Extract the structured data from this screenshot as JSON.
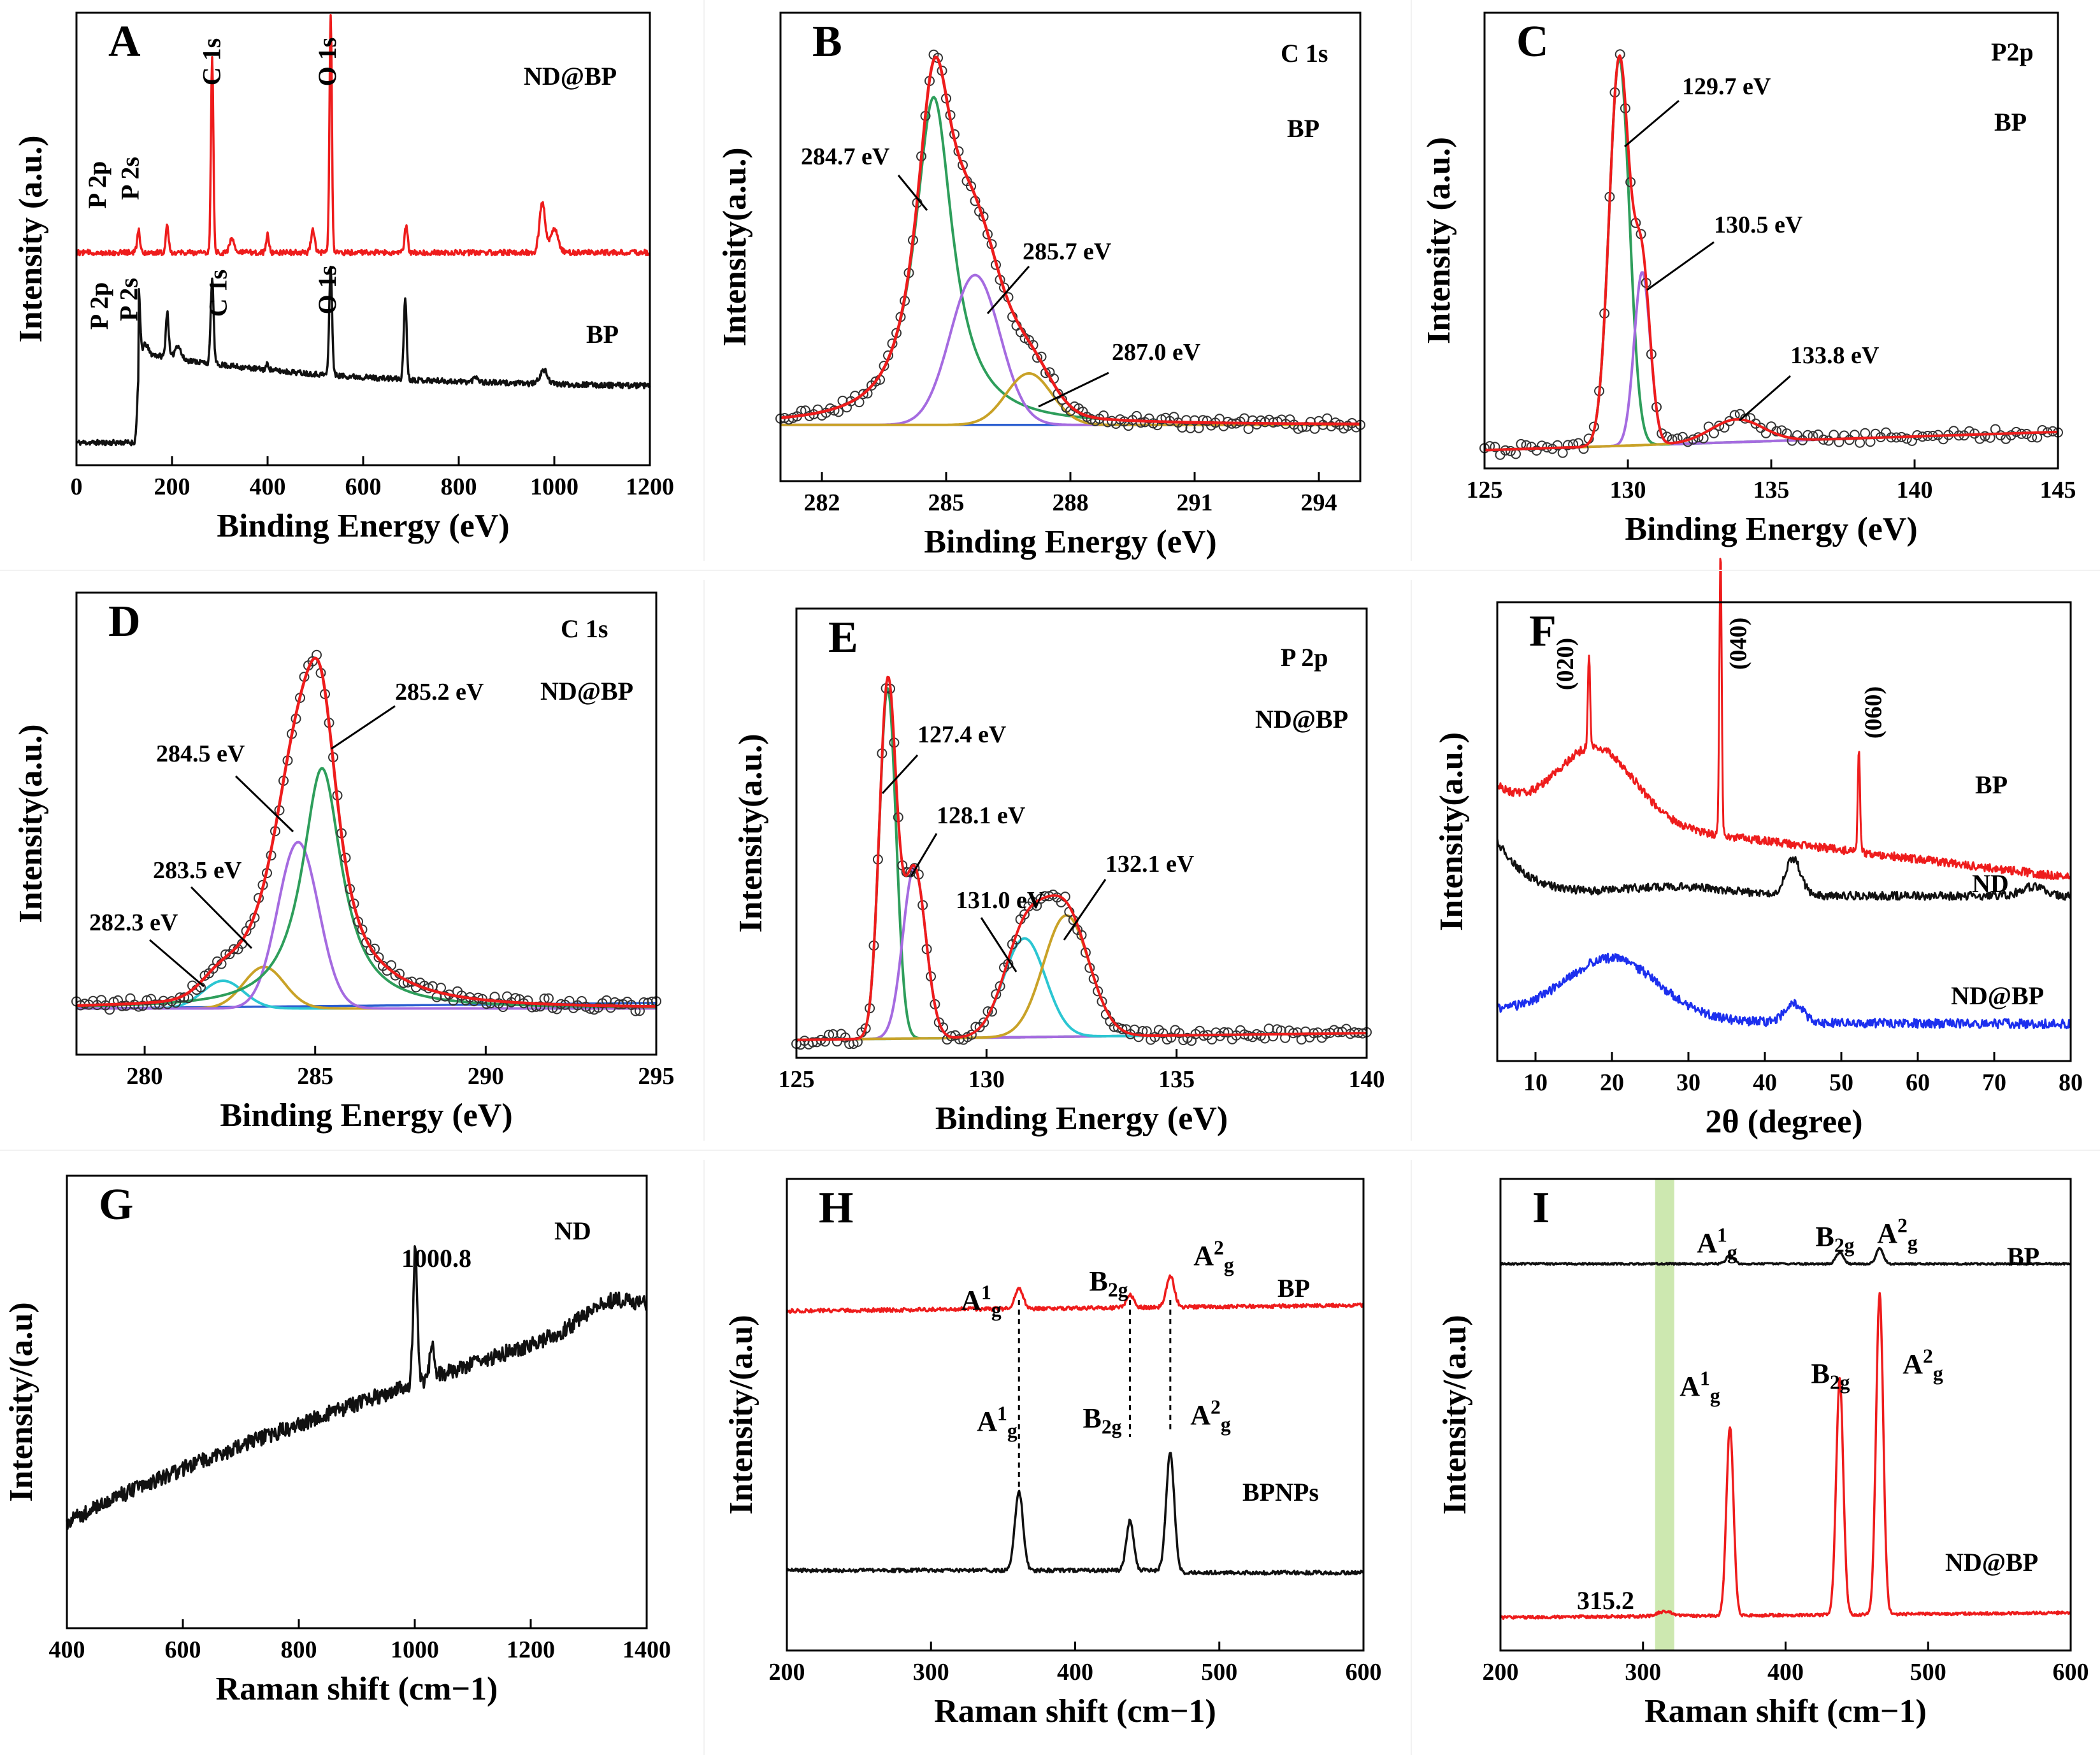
{
  "colors": {
    "red": "#ee1c1c",
    "black": "#111111",
    "blue": "#1c2fee",
    "green": "#2e9e5b",
    "purple": "#a56be0",
    "gold": "#c9a227",
    "cyan": "#2bc6d2",
    "baseline": "#2c5fd0",
    "highlight": "#cde8b0"
  },
  "chart_data": [
    {
      "id": "A",
      "type": "line",
      "letter": "A",
      "xlabel": "Binding Energy (eV)",
      "ylabel": "Intensity (a.u.)",
      "xlim": [
        0,
        1200
      ],
      "xticks": [
        0,
        200,
        400,
        600,
        800,
        1000,
        1200
      ],
      "series": [
        {
          "name": "ND@BP",
          "color": "red",
          "peaks": [
            [
              130,
              "P 2p"
            ],
            [
              190,
              "P 2s"
            ],
            [
              284,
              "C 1s"
            ],
            [
              532,
              "O 1s"
            ]
          ]
        },
        {
          "name": "BP",
          "color": "black",
          "peaks": [
            [
              130,
              "P 2p"
            ],
            [
              190,
              "P 2s"
            ],
            [
              284,
              "C 1s"
            ],
            [
              532,
              "O 1s"
            ]
          ]
        }
      ],
      "annotations": [
        "C 1s",
        "O 1s",
        "P 2p",
        "P 2s",
        "ND@BP",
        "BP",
        "P 2p",
        "P 2s",
        "C 1s",
        "O 1s"
      ]
    },
    {
      "id": "B",
      "type": "line",
      "letter": "B",
      "xlabel": "Binding Energy (eV)",
      "ylabel": "Intensity(a.u.)",
      "xlim": [
        281,
        295
      ],
      "xticks": [
        282,
        285,
        288,
        291,
        294
      ],
      "peaks": [
        {
          "center": 284.7,
          "label": "284.7 eV"
        },
        {
          "center": 285.7,
          "label": "285.7 eV"
        },
        {
          "center": 287.0,
          "label": "287.0 eV"
        }
      ],
      "annotations": [
        "C 1s",
        "BP"
      ]
    },
    {
      "id": "C",
      "type": "line",
      "letter": "C",
      "xlabel": "Binding Energy (eV)",
      "ylabel": "Intensity (a.u.)",
      "xlim": [
        125,
        145
      ],
      "xticks": [
        125,
        130,
        135,
        140,
        145
      ],
      "peaks": [
        {
          "center": 129.7,
          "label": "129.7 eV"
        },
        {
          "center": 130.5,
          "label": "130.5 eV"
        },
        {
          "center": 133.8,
          "label": "133.8 eV"
        }
      ],
      "annotations": [
        "P2p",
        "BP"
      ]
    },
    {
      "id": "D",
      "type": "line",
      "letter": "D",
      "xlabel": "Binding Energy (eV)",
      "ylabel": "Intensity(a.u.)",
      "xlim": [
        278,
        295
      ],
      "xticks": [
        280,
        285,
        290,
        295
      ],
      "peaks": [
        {
          "center": 282.3,
          "label": "282.3 eV"
        },
        {
          "center": 283.5,
          "label": "283.5 eV"
        },
        {
          "center": 284.5,
          "label": "284.5 eV"
        },
        {
          "center": 285.2,
          "label": "285.2 eV"
        }
      ],
      "annotations": [
        "C 1s",
        "ND@BP"
      ]
    },
    {
      "id": "E",
      "type": "line",
      "letter": "E",
      "xlabel": "Binding Energy (eV)",
      "ylabel": "Intensity(a.u.)",
      "xlim": [
        125,
        140
      ],
      "xticks": [
        125,
        130,
        135,
        140
      ],
      "peaks": [
        {
          "center": 127.4,
          "label": "127.4 eV"
        },
        {
          "center": 128.1,
          "label": "128.1 eV"
        },
        {
          "center": 131.0,
          "label": "131.0 eV"
        },
        {
          "center": 132.1,
          "label": "132.1 eV"
        }
      ],
      "annotations": [
        "P 2p",
        "ND@BP"
      ]
    },
    {
      "id": "F",
      "type": "line",
      "letter": "F",
      "xlabel": "2θ (degree)",
      "ylabel": "Intensity(a.u.)",
      "xlim": [
        5,
        80
      ],
      "xticks": [
        10,
        20,
        30,
        40,
        50,
        60,
        70,
        80
      ],
      "series": [
        {
          "name": "BP",
          "color": "red"
        },
        {
          "name": "ND",
          "color": "black"
        },
        {
          "name": "ND@BP",
          "color": "blue"
        }
      ],
      "peak_labels": [
        {
          "x": 17,
          "label": "(020)"
        },
        {
          "x": 34.2,
          "label": "(040)"
        },
        {
          "x": 52.3,
          "label": "(060)"
        }
      ]
    },
    {
      "id": "G",
      "type": "line",
      "letter": "G",
      "xlabel": "Raman shift (cm−1)",
      "ylabel": "Intensity/(a.u)",
      "xlim": [
        400,
        1400
      ],
      "xticks": [
        400,
        600,
        800,
        1000,
        1200,
        1400
      ],
      "series": [
        {
          "name": "ND",
          "color": "black"
        }
      ],
      "peak_labels": [
        {
          "x": 1000.8,
          "label": "1000.8"
        }
      ]
    },
    {
      "id": "H",
      "type": "line",
      "letter": "H",
      "xlabel": "Raman shift (cm−1)",
      "ylabel": "Intensity/(a.u)",
      "xlim": [
        200,
        600
      ],
      "xticks": [
        200,
        300,
        400,
        500,
        600
      ],
      "series": [
        {
          "name": "BP",
          "color": "red"
        },
        {
          "name": "BPNPs",
          "color": "black"
        }
      ],
      "modes": [
        {
          "x": 361,
          "label": "A1g"
        },
        {
          "x": 438,
          "label": "B2g"
        },
        {
          "x": 466,
          "label": "A2g"
        }
      ]
    },
    {
      "id": "I",
      "type": "line",
      "letter": "I",
      "xlabel": "Raman shift (cm−1)",
      "ylabel": "Intensity/(a.u)",
      "xlim": [
        200,
        600
      ],
      "xticks": [
        200,
        300,
        400,
        500,
        600
      ],
      "series": [
        {
          "name": "BP",
          "color": "black"
        },
        {
          "name": "ND@BP",
          "color": "red"
        }
      ],
      "modes": [
        {
          "x": 361,
          "label": "A1g"
        },
        {
          "x": 438,
          "label": "B2g"
        },
        {
          "x": 466,
          "label": "A2g"
        }
      ],
      "peak_labels": [
        {
          "x": 315.2,
          "label": "315.2"
        }
      ]
    }
  ]
}
